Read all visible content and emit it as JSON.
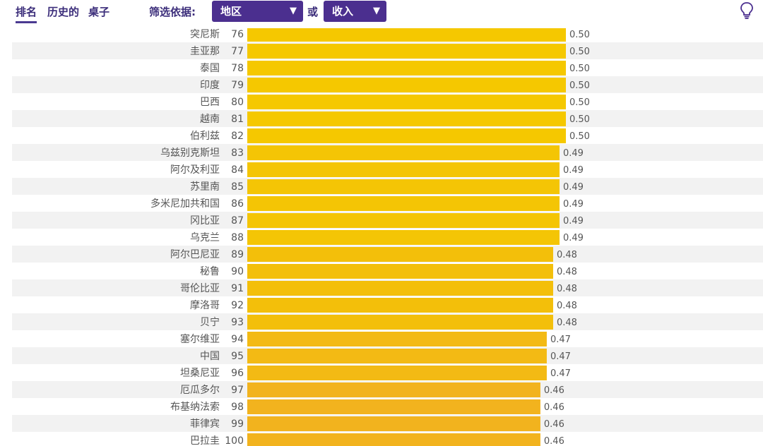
{
  "nav": {
    "tabs": [
      {
        "label": "排名"
      },
      {
        "label": "历史的"
      },
      {
        "label": "桌子"
      }
    ],
    "filter_label": "筛选依据:",
    "region_select": "地区",
    "or_label": "或",
    "income_select": "收入",
    "dropdown_glyph": "▼"
  },
  "colors": {
    "accent": "#4b2f8f",
    "bar_high": "#f5c800",
    "bar_low": "#f2b31e",
    "row_stripe": "#f2f2f2"
  },
  "chart_data": {
    "type": "bar",
    "orientation": "horizontal",
    "categories": [
      "突尼斯",
      "圭亚那",
      "泰国",
      "印度",
      "巴西",
      "越南",
      "伯利兹",
      "乌兹别克斯坦",
      "阿尔及利亚",
      "苏里南",
      "多米尼加共和国",
      "冈比亚",
      "乌克兰",
      "阿尔巴尼亚",
      "秘鲁",
      "哥伦比亚",
      "摩洛哥",
      "贝宁",
      "塞尔维亚",
      "中国",
      "坦桑尼亚",
      "厄瓜多尔",
      "布基纳法索",
      "菲律宾",
      "巴拉圭"
    ],
    "ranks": [
      "76",
      "77",
      "78",
      "79",
      "80",
      "81",
      "82",
      "83",
      "84",
      "85",
      "86",
      "87",
      "88",
      "89",
      "90",
      "91",
      "92",
      "93",
      "94",
      "95",
      "96",
      "97",
      "98",
      "99",
      "100"
    ],
    "values": [
      0.5,
      0.5,
      0.5,
      0.5,
      0.5,
      0.5,
      0.5,
      0.49,
      0.49,
      0.49,
      0.49,
      0.49,
      0.49,
      0.48,
      0.48,
      0.48,
      0.48,
      0.48,
      0.47,
      0.47,
      0.47,
      0.46,
      0.46,
      0.46,
      0.46
    ],
    "value_labels": [
      "0.50",
      "0.50",
      "0.50",
      "0.50",
      "0.50",
      "0.50",
      "0.50",
      "0.49",
      "0.49",
      "0.49",
      "0.49",
      "0.49",
      "0.49",
      "0.48",
      "0.48",
      "0.48",
      "0.48",
      "0.48",
      "0.47",
      "0.47",
      "0.47",
      "0.46",
      "0.46",
      "0.46",
      "0.46"
    ]
  }
}
